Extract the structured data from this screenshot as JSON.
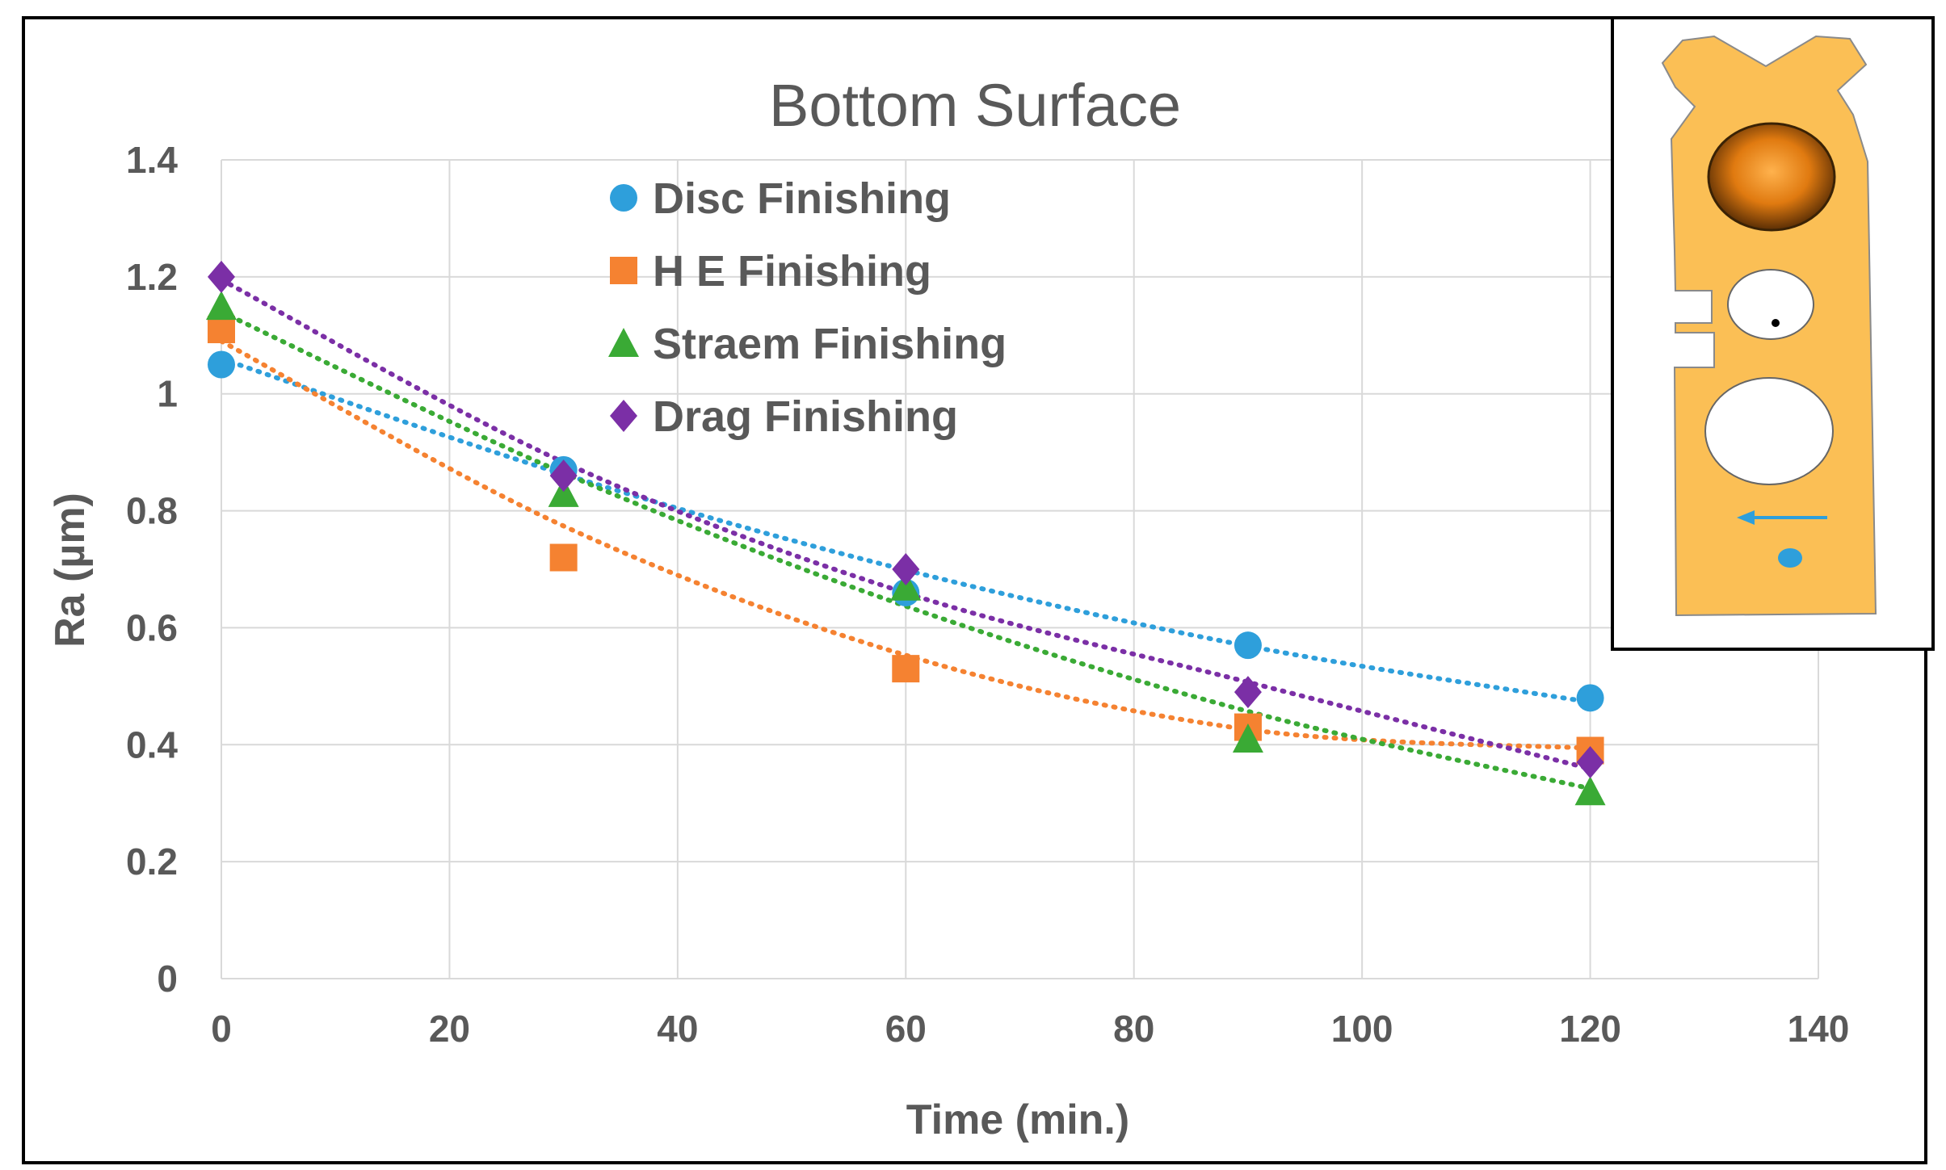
{
  "chart_data": {
    "type": "scatter",
    "title": "Bottom Surface",
    "xlabel": "Time (min.)",
    "ylabel": "Ra (µm)",
    "xlim": [
      0,
      140
    ],
    "ylim": [
      0,
      1.4
    ],
    "xticks": [
      "0",
      "20",
      "40",
      "60",
      "80",
      "100",
      "120",
      "140"
    ],
    "yticks": [
      "0",
      "0.2",
      "0.4",
      "0.6",
      "0.8",
      "1",
      "1.2",
      "1.4"
    ],
    "grid": true,
    "legend_position": "top-left",
    "trendline": "polynomial (dotted)",
    "x": [
      0,
      30,
      60,
      90,
      120
    ],
    "series": [
      {
        "name": "Disc Finishing",
        "marker": "circle",
        "color": "#2E9FDB",
        "values": [
          1.05,
          0.87,
          0.66,
          0.57,
          0.48
        ],
        "trend": [
          1.06,
          0.8625,
          0.6986,
          0.5687,
          0.4727
        ]
      },
      {
        "name": "H E Finishing",
        "marker": "square",
        "color": "#F58231",
        "values": [
          1.11,
          0.72,
          0.53,
          0.43,
          0.39
        ],
        "trend": [
          1.09,
          0.774,
          0.553,
          0.426,
          0.394
        ]
      },
      {
        "name": "Straem Finishing",
        "marker": "triangle",
        "color": "#3AAA35",
        "values": [
          1.15,
          0.83,
          0.67,
          0.41,
          0.32
        ],
        "trend": [
          1.14,
          0.8645,
          0.637,
          0.457,
          0.325
        ]
      },
      {
        "name": "Drag Finishing",
        "marker": "diamond",
        "color": "#7B2FA6",
        "values": [
          1.2,
          0.86,
          0.7,
          0.49,
          0.37
        ],
        "trend": [
          1.195,
          0.883,
          0.6595,
          0.507,
          0.359
        ]
      }
    ]
  },
  "inset": {
    "description_icon": "part-diagram-icon",
    "part_color": "#FBBF55",
    "arrow_color": "#2E9FDB"
  }
}
